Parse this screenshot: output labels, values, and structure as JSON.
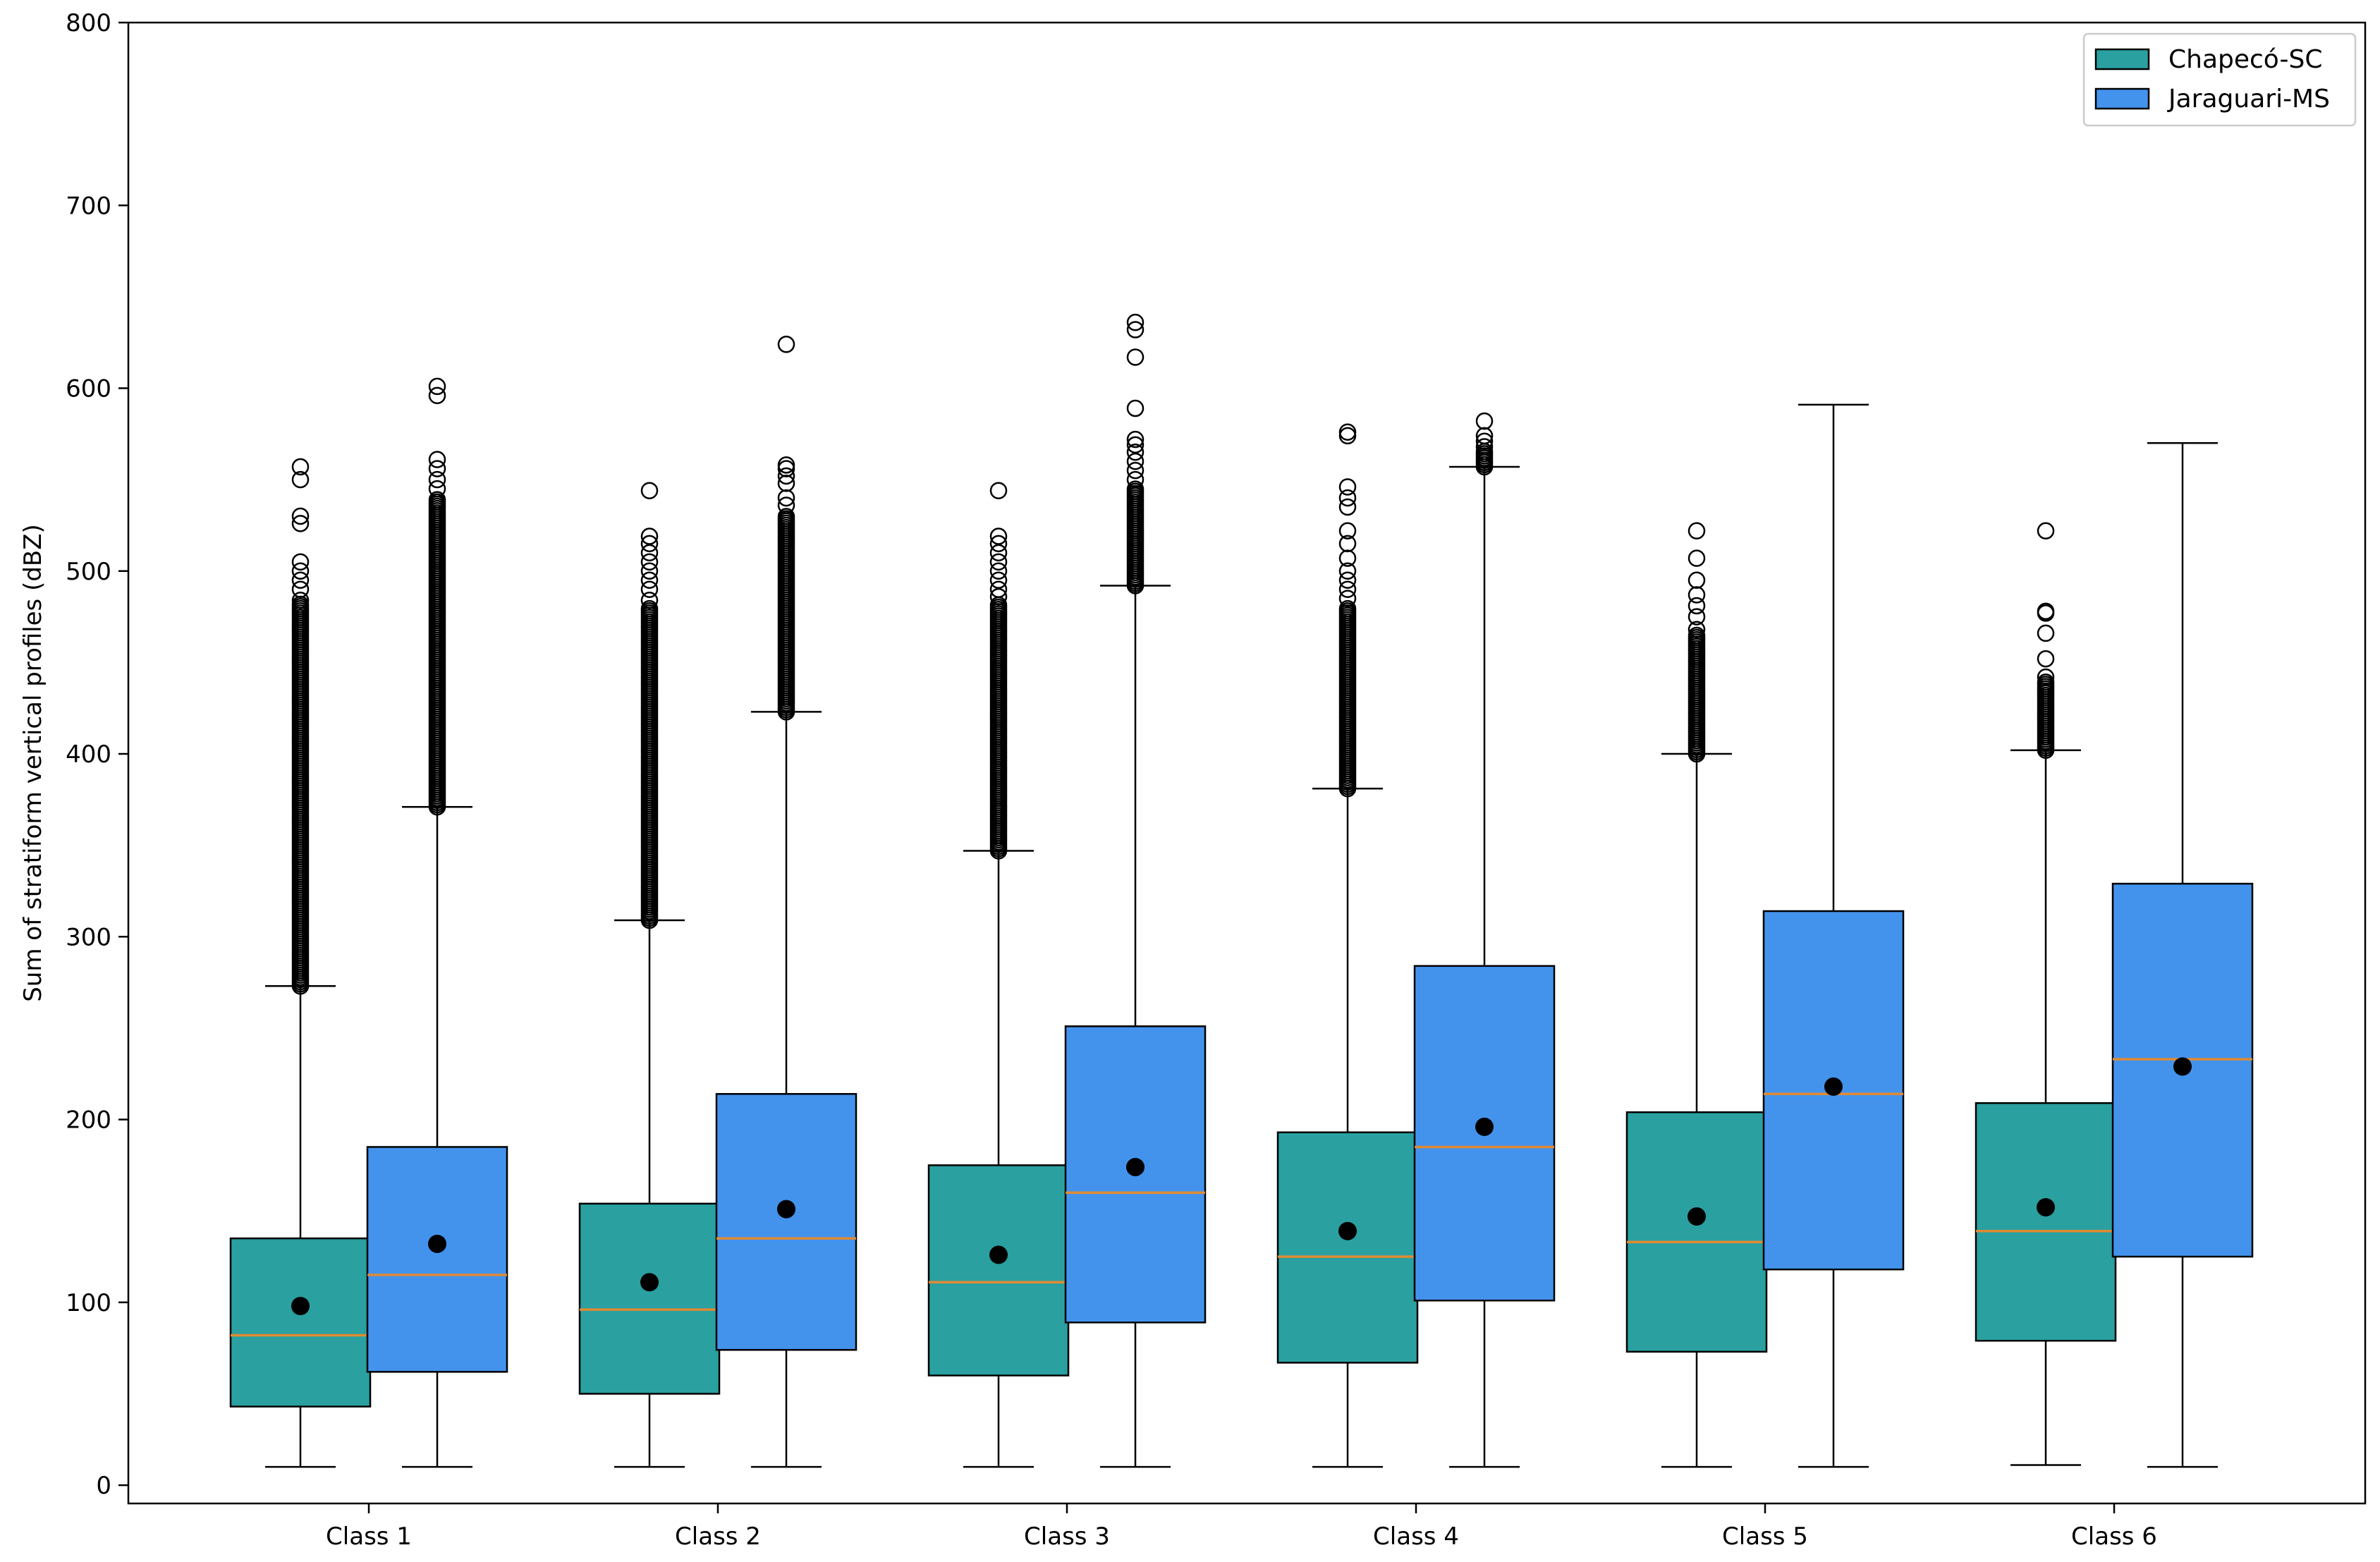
{
  "chart_data": {
    "type": "boxplot",
    "title": "",
    "xlabel": "",
    "ylabel": "Sum of stratiform vertical profiles (dBZ)",
    "ylim": [
      -10,
      800
    ],
    "yticks": [
      0,
      100,
      200,
      300,
      400,
      500,
      600,
      700,
      800
    ],
    "categories": [
      "Class 1",
      "Class 2",
      "Class 3",
      "Class 4",
      "Class 5",
      "Class 6"
    ],
    "legend": {
      "position": "top-right"
    },
    "mean_marker": "black dot",
    "median_color": "#E08A33",
    "series": [
      {
        "name": "Chapecó-SC",
        "color": "#2aa0a0",
        "boxes": [
          {
            "whislo": 10,
            "q1": 43,
            "med": 82,
            "q3": 135,
            "whishi": 273,
            "mean": 98,
            "fliers_range": [
              273,
              482
            ],
            "fliers": [
              484,
              490,
              495,
              500,
              505,
              526,
              530,
              550,
              557
            ]
          },
          {
            "whislo": 10,
            "q1": 50,
            "med": 96,
            "q3": 154,
            "whishi": 309,
            "mean": 111,
            "fliers_range": [
              309,
              480
            ],
            "fliers": [
              484,
              490,
              495,
              500,
              505,
              510,
              515,
              519,
              544
            ]
          },
          {
            "whislo": 10,
            "q1": 60,
            "med": 111,
            "q3": 175,
            "whishi": 347,
            "mean": 126,
            "fliers_range": [
              347,
              482
            ],
            "fliers": [
              486,
              490,
              495,
              500,
              505,
              510,
              515,
              519,
              544
            ]
          },
          {
            "whislo": 10,
            "q1": 67,
            "med": 125,
            "q3": 193,
            "whishi": 381,
            "mean": 139,
            "fliers_range": [
              381,
              480
            ],
            "fliers": [
              485,
              490,
              495,
              500,
              507,
              515,
              522,
              535,
              540,
              546,
              574,
              576
            ]
          },
          {
            "whislo": 10,
            "q1": 73,
            "med": 133,
            "q3": 204,
            "whishi": 400,
            "mean": 147,
            "fliers_range": [
              400,
              465
            ],
            "fliers": [
              468,
              475,
              481,
              487,
              495,
              507,
              522
            ]
          },
          {
            "whislo": 11,
            "q1": 79,
            "med": 139,
            "q3": 209,
            "whishi": 402,
            "mean": 152,
            "fliers_range": [
              402,
              440
            ],
            "fliers": [
              442,
              452,
              466,
              477,
              478,
              522
            ]
          }
        ]
      },
      {
        "name": "Jaraguari-MS",
        "color": "#4393ed",
        "boxes": [
          {
            "whislo": 10,
            "q1": 62,
            "med": 115,
            "q3": 185,
            "whishi": 371,
            "mean": 132,
            "fliers_range": [
              371,
              540
            ],
            "fliers": [
              545,
              550,
              556,
              561,
              596,
              601
            ]
          },
          {
            "whislo": 10,
            "q1": 74,
            "med": 135,
            "q3": 214,
            "whishi": 423,
            "mean": 151,
            "fliers_range": [
              423,
              530
            ],
            "fliers": [
              536,
              540,
              548,
              552,
              556,
              558,
              624
            ]
          },
          {
            "whislo": 10,
            "q1": 89,
            "med": 160,
            "q3": 251,
            "whishi": 492,
            "mean": 174,
            "fliers_range": [
              492,
              545
            ],
            "fliers": [
              550,
              555,
              560,
              565,
              569,
              572,
              589,
              617,
              632,
              636
            ]
          },
          {
            "whislo": 10,
            "q1": 101,
            "med": 185,
            "q3": 284,
            "whishi": 557,
            "mean": 196,
            "fliers_range": [
              557,
              566
            ],
            "fliers": [
              568,
              571,
              574,
              582
            ]
          },
          {
            "whislo": 10,
            "q1": 118,
            "med": 214,
            "q3": 314,
            "whishi": 591,
            "mean": 218,
            "fliers_range": [],
            "fliers": []
          },
          {
            "whislo": 10,
            "q1": 125,
            "med": 233,
            "q3": 329,
            "whishi": 570,
            "mean": 229,
            "fliers_range": [],
            "fliers": []
          }
        ]
      }
    ]
  }
}
